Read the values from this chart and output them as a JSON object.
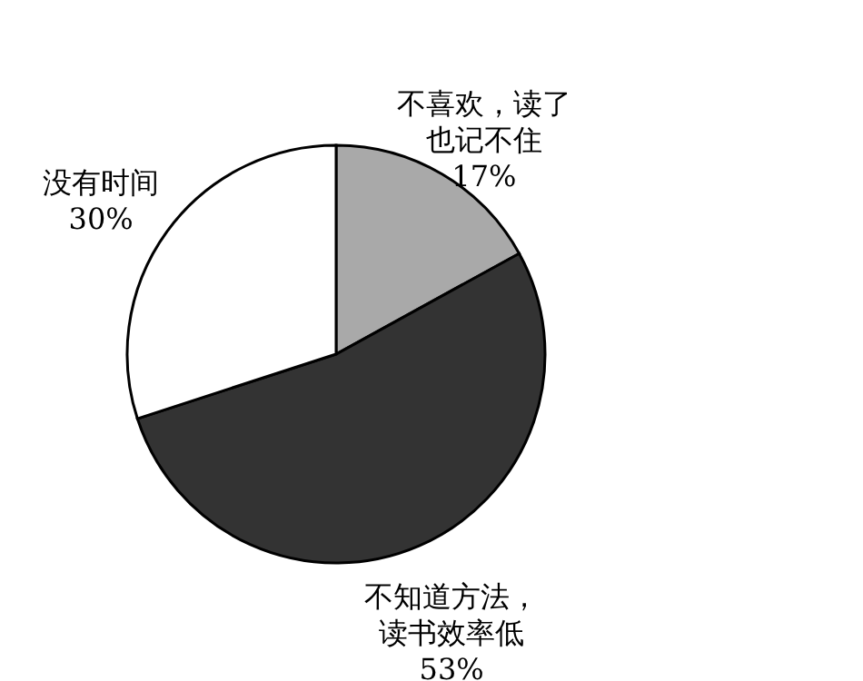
{
  "chart_data": {
    "type": "pie",
    "categories": [
      "不喜欢，读了也记不住",
      "不知道方法，读书效率低",
      "没有时间"
    ],
    "values": [
      17,
      53,
      30
    ],
    "colors": [
      "#a9a9a9",
      "#333333",
      "#ffffff"
    ],
    "value_labels": [
      "17%",
      "53%",
      "30%"
    ]
  }
}
